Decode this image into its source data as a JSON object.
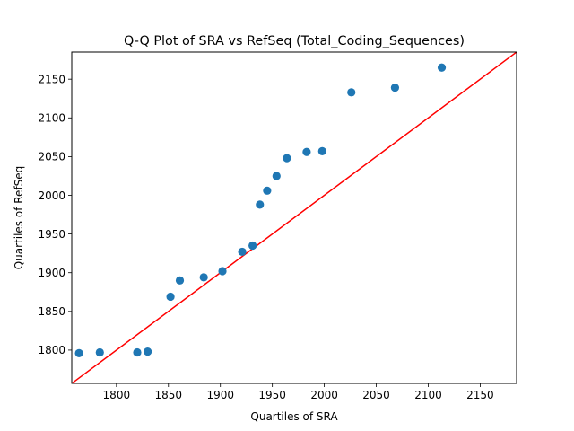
{
  "chart_data": {
    "type": "scatter",
    "title": "Q-Q Plot of SRA vs RefSeq (Total_Coding_Sequences)",
    "xlabel": "Quartiles of SRA",
    "ylabel": "Quartiles of RefSeq",
    "xlim": [
      1757,
      2185
    ],
    "ylim": [
      1757,
      2185
    ],
    "xticks": [
      1800,
      1850,
      1900,
      1950,
      2000,
      2050,
      2100,
      2150
    ],
    "yticks": [
      1800,
      1850,
      1900,
      1950,
      2000,
      2050,
      2100,
      2150
    ],
    "grid": false,
    "reference_line": {
      "description": "y = x",
      "color": "#ff0000"
    },
    "marker_color": "#1f77b4",
    "series": [
      {
        "points": [
          {
            "x": 1764,
            "y": 1796
          },
          {
            "x": 1784,
            "y": 1797
          },
          {
            "x": 1820,
            "y": 1797
          },
          {
            "x": 1830,
            "y": 1798
          },
          {
            "x": 1852,
            "y": 1869
          },
          {
            "x": 1861,
            "y": 1890
          },
          {
            "x": 1884,
            "y": 1894
          },
          {
            "x": 1902,
            "y": 1902
          },
          {
            "x": 1921,
            "y": 1927
          },
          {
            "x": 1931,
            "y": 1935
          },
          {
            "x": 1938,
            "y": 1988
          },
          {
            "x": 1945,
            "y": 2006
          },
          {
            "x": 1954,
            "y": 2025
          },
          {
            "x": 1964,
            "y": 2048
          },
          {
            "x": 1983,
            "y": 2056
          },
          {
            "x": 1998,
            "y": 2057
          },
          {
            "x": 2026,
            "y": 2133
          },
          {
            "x": 2068,
            "y": 2139
          },
          {
            "x": 2113,
            "y": 2165
          }
        ]
      }
    ]
  }
}
